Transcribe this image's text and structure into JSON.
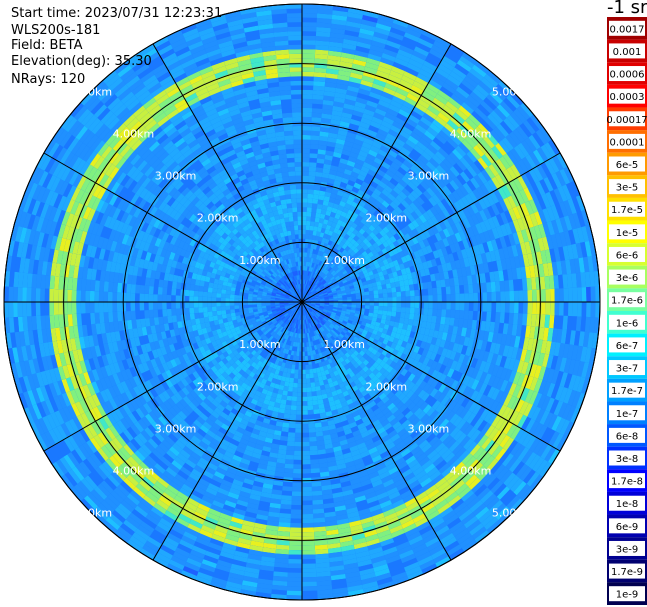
{
  "header": {
    "start_time": "Start time: 2023/07/31 12:23:31",
    "instrument": "WLS200s-181",
    "field": "Field: BETA",
    "elevation": "Elevation(deg): 35.30",
    "nrays": "NRays: 120"
  },
  "colorbar": {
    "title": "-1 sr",
    "labels": [
      "0.0017",
      "0.001",
      "0.0006",
      "0.0003",
      "0.00017",
      "0.0001",
      "6e-5",
      "3e-5",
      "1.7e-5",
      "1e-5",
      "6e-6",
      "3e-6",
      "1.7e-6",
      "1e-6",
      "6e-7",
      "3e-7",
      "1.7e-7",
      "1e-7",
      "6e-8",
      "3e-8",
      "1.7e-8",
      "1e-8",
      "6e-9",
      "3e-9",
      "1.7e-9",
      "1e-9"
    ],
    "colors": [
      "#a00000",
      "#c80000",
      "#e00000",
      "#ff0000",
      "#ff3c00",
      "#ff6e00",
      "#ff9a00",
      "#ffc000",
      "#ffe000",
      "#ffff00",
      "#d8ff30",
      "#a8ff60",
      "#78ffa0",
      "#40ffd0",
      "#00f0ff",
      "#00c8ff",
      "#00a0ff",
      "#0080ff",
      "#0058ff",
      "#0030ff",
      "#0000ff",
      "#0000d8",
      "#0000b0",
      "#000090",
      "#000070",
      "#000050"
    ]
  },
  "chart_data": {
    "type": "ppi",
    "field": "BETA",
    "nrays": 120,
    "range_max_km": 5.0,
    "range_ring_labels": [
      "1.00km",
      "2.00km",
      "3.00km",
      "4.00km",
      "5.00km"
    ],
    "range_rings_km": [
      1,
      2,
      3,
      4,
      5
    ],
    "azimuth_lines_deg": [
      0,
      30,
      60,
      90,
      120,
      150
    ],
    "enhanced_layer_km": [
      3.95,
      4.15
    ],
    "colorscale": "log10 backscatter 1e-9 to 0.0017"
  }
}
